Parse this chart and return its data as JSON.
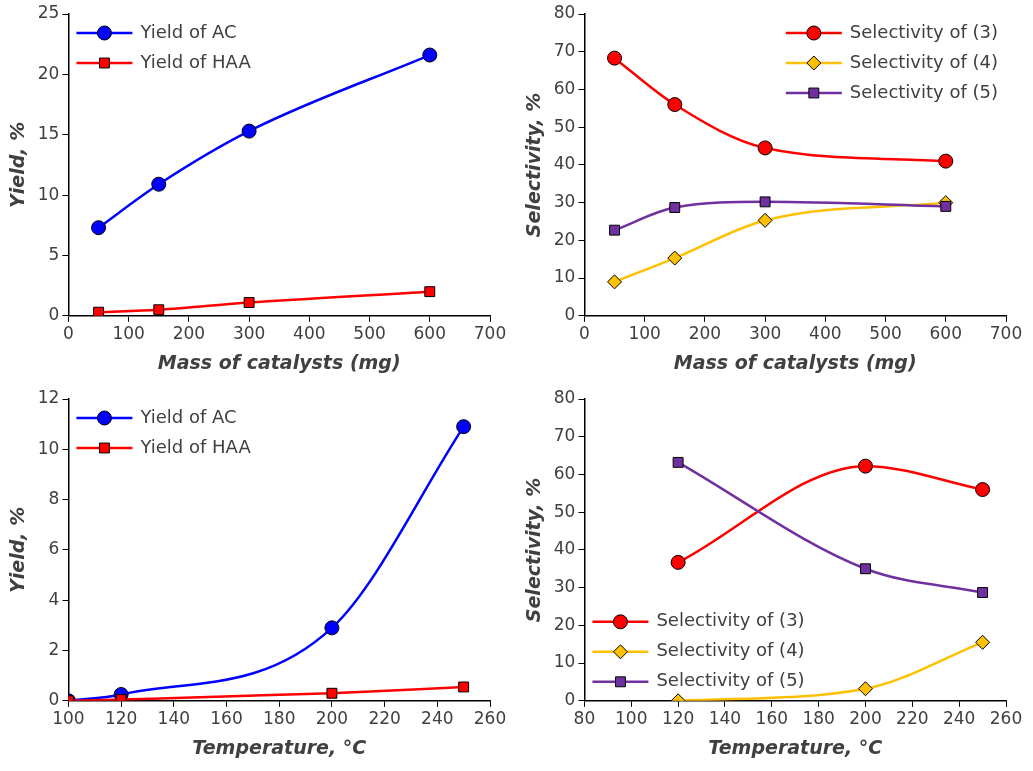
{
  "chart_data": [
    {
      "type": "line",
      "xlabel": "Mass of catalysts (mg)",
      "ylabel": "Yield, %",
      "xlim": [
        0,
        700
      ],
      "xticks": [
        0,
        100,
        200,
        300,
        400,
        500,
        600,
        700
      ],
      "ylim": [
        0,
        25
      ],
      "yticks": [
        0,
        5,
        10,
        15,
        20,
        25
      ],
      "grid": false,
      "legend": "top left",
      "x": [
        50,
        150,
        300,
        600
      ],
      "series": [
        {
          "name": "Yield of AC",
          "color": "#0000ff",
          "marker": "circle",
          "values": [
            7.3,
            10.9,
            15.3,
            21.6
          ]
        },
        {
          "name": "Yield of HAA",
          "color": "#ff0000",
          "marker": "square",
          "values": [
            0.3,
            0.5,
            1.1,
            2.0
          ]
        }
      ]
    },
    {
      "type": "line",
      "xlabel": "Mass of catalysts (mg)",
      "ylabel": "Selectivity, %",
      "xlim": [
        0,
        700
      ],
      "xticks": [
        0,
        100,
        200,
        300,
        400,
        500,
        600,
        700
      ],
      "ylim": [
        0,
        80
      ],
      "yticks": [
        0,
        10,
        20,
        30,
        40,
        50,
        60,
        70,
        80
      ],
      "grid": false,
      "legend": "top right",
      "x": [
        50,
        150,
        300,
        600
      ],
      "series": [
        {
          "name": "Selectivity of (3)",
          "color": "#ff0000",
          "marker": "circle",
          "values": [
            68.3,
            56,
            44.5,
            41
          ]
        },
        {
          "name": "Selectivity of (4)",
          "color": "#ffc000",
          "marker": "diamond",
          "values": [
            9,
            15.3,
            25.3,
            30
          ]
        },
        {
          "name": "Selectivity of (5)",
          "color": "#7030a0",
          "marker": "square",
          "values": [
            22.7,
            28.7,
            30.2,
            29
          ]
        }
      ]
    },
    {
      "type": "line",
      "xlabel": "Temperature, °C",
      "ylabel": "Yield, %",
      "xlim": [
        100,
        260
      ],
      "xticks": [
        100,
        120,
        140,
        160,
        180,
        200,
        220,
        240,
        260
      ],
      "ylim": [
        0,
        12
      ],
      "yticks": [
        0,
        2,
        4,
        6,
        8,
        10,
        12
      ],
      "grid": false,
      "legend": "top left",
      "x": [
        100,
        120,
        200,
        250
      ],
      "series": [
        {
          "name": "Yield of AC",
          "color": "#0000ff",
          "marker": "circle",
          "values": [
            0,
            0.25,
            2.9,
            10.9
          ]
        },
        {
          "name": "Yield of HAA",
          "color": "#ff0000",
          "marker": "square",
          "values": [
            0,
            0.05,
            0.3,
            0.55
          ]
        }
      ]
    },
    {
      "type": "line",
      "xlabel": "Temperature, °C",
      "ylabel": "Selectivity, %",
      "xlim": [
        80,
        260
      ],
      "xticks": [
        80,
        100,
        120,
        140,
        160,
        180,
        200,
        220,
        240,
        260
      ],
      "ylim": [
        0,
        80
      ],
      "yticks": [
        0,
        10,
        20,
        30,
        40,
        50,
        60,
        70,
        80
      ],
      "grid": false,
      "legend": "bottom left",
      "x": [
        120,
        200,
        250
      ],
      "series": [
        {
          "name": "Selectivity of (3)",
          "color": "#ff0000",
          "marker": "circle",
          "values": [
            36.7,
            62.2,
            56
          ]
        },
        {
          "name": "Selectivity of (4)",
          "color": "#ffc000",
          "marker": "diamond",
          "values": [
            0,
            3.2,
            15.5
          ]
        },
        {
          "name": "Selectivity of (5)",
          "color": "#7030a0",
          "marker": "square",
          "values": [
            63.2,
            35,
            28.7
          ]
        }
      ]
    }
  ]
}
